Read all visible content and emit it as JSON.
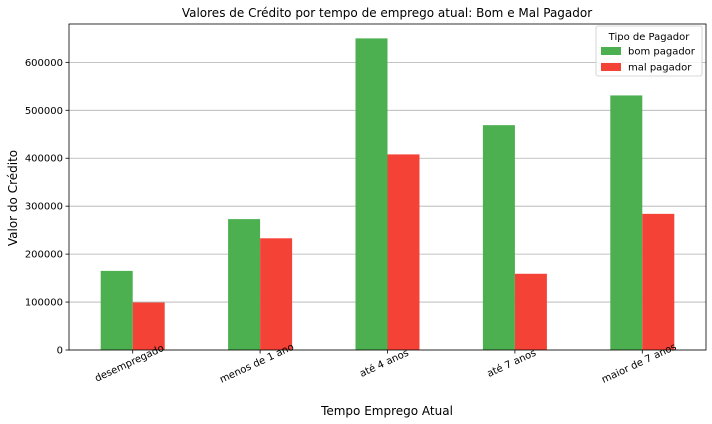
{
  "chart_data": {
    "type": "bar",
    "title": "Valores de Crédito por tempo de emprego atual: Bom e Mal Pagador",
    "xlabel": "Tempo Emprego Atual",
    "ylabel": "Valor do Crédito",
    "categories": [
      "desempregado",
      "menos de 1 ano",
      "até 4 anos",
      "até 7 anos",
      "maior de 7 anos"
    ],
    "series": [
      {
        "name": "bom pagador",
        "color": "#4caf50",
        "values": [
          165000,
          273000,
          650000,
          469000,
          531000
        ]
      },
      {
        "name": "mal pagador",
        "color": "#f44336",
        "values": [
          99000,
          233000,
          408000,
          159000,
          284000
        ]
      }
    ],
    "ylim": [
      0,
      680000
    ],
    "yticks": [
      0,
      100000,
      200000,
      300000,
      400000,
      500000,
      600000
    ],
    "ytick_labels": [
      "0",
      "100000",
      "200000",
      "300000",
      "400000",
      "500000",
      "600000"
    ],
    "grid": "horizontal",
    "legend": {
      "title": "Tipo de Pagador",
      "placement": "top-right"
    }
  }
}
